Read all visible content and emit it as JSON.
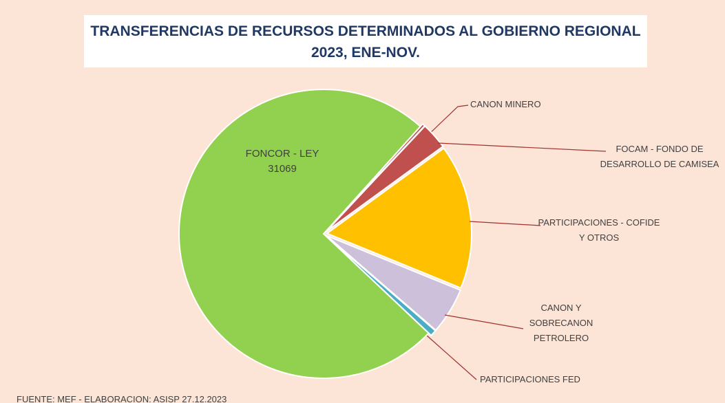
{
  "chart_data": {
    "type": "pie",
    "title": "TRANSFERENCIAS DE RECURSOS DETERMINADOS AL GOBIERNO REGIONAL 2023, ENE-NOV.",
    "categories": [
      "CANON MINERO",
      "FOCAM - FONDO DE DESARROLLO DE CAMISEA",
      "PARTICIPACIONES - COFIDE Y OTROS",
      "CANON Y SOBRECANON PETROLERO",
      "PARTICIPACIONES FED",
      "FONCOR - LEY 31069"
    ],
    "values": [
      0.3,
      3.0,
      16.2,
      5.2,
      0.7,
      74.6
    ],
    "colors": [
      "#c0504d",
      "#c0504d",
      "#ffc000",
      "#ccc0da",
      "#4bacc6",
      "#92d050"
    ],
    "source": "FUENTE: MEF - ELABORACION: ASISP 27.12.2023"
  }
}
